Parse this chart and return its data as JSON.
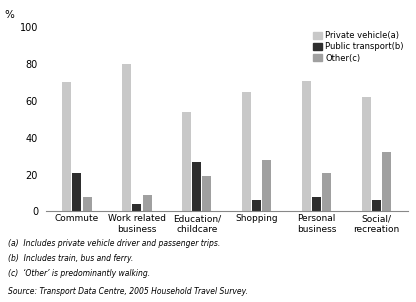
{
  "categories": [
    "Commute",
    "Work related\nbusiness",
    "Education/\nchildcare",
    "Shopping",
    "Personal\nbusiness",
    "Social/\nrecreation"
  ],
  "private_vehicle": [
    70,
    80,
    54,
    65,
    71,
    62
  ],
  "public_transport": [
    21,
    4,
    27,
    6,
    8,
    6
  ],
  "other": [
    8,
    9,
    19,
    28,
    21,
    32
  ],
  "color_private": "#c8c8c8",
  "color_public": "#2e2e2e",
  "color_other": "#a0a0a0",
  "ylabel": "%",
  "ylim": [
    0,
    100
  ],
  "yticks": [
    0,
    20,
    40,
    60,
    80,
    100
  ],
  "legend_labels": [
    "Private vehicle(a)",
    "Public transport(b)",
    "Other(c)"
  ],
  "footnotes": [
    "(a)  Includes private vehicle driver and passenger trips.",
    "(b)  Includes train, bus and ferry.",
    "(c)  ‘Other’ is predominantly walking."
  ],
  "source": "Source: Transport Data Centre, 2005 Household Travel Survey."
}
